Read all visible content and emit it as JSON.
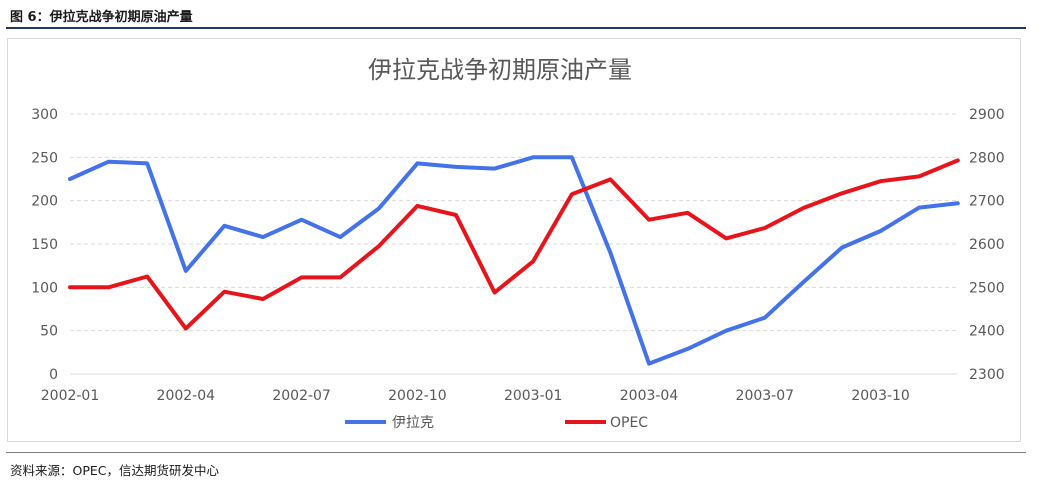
{
  "figure": {
    "caption": "图 6：伊拉克战争初期原油产量",
    "source": "资料来源：OPEC，信达期货研发中心"
  },
  "colors": {
    "iraq": "#4472e8",
    "opec": "#e8141b",
    "grid": "#d9d9d9",
    "text": "#595959"
  },
  "chart_data": {
    "type": "line",
    "title": "伊拉克战争初期原油产量",
    "x": [
      "2002-01",
      "2002-02",
      "2002-03",
      "2002-04",
      "2002-05",
      "2002-06",
      "2002-07",
      "2002-08",
      "2002-09",
      "2002-10",
      "2002-11",
      "2002-12",
      "2003-01",
      "2003-02",
      "2003-03",
      "2003-04",
      "2003-05",
      "2003-06",
      "2003-07",
      "2003-08",
      "2003-09",
      "2003-10",
      "2003-11",
      "2003-12"
    ],
    "x_tick_labels": [
      "2002-01",
      "2002-04",
      "2002-07",
      "2002-10",
      "2003-01",
      "2003-04",
      "2003-07",
      "2003-10"
    ],
    "x_tick_indices": [
      0,
      3,
      6,
      9,
      12,
      15,
      18,
      21
    ],
    "y_left": {
      "ylim": [
        0,
        300
      ],
      "ticks": [
        0,
        50,
        100,
        150,
        200,
        250,
        300
      ]
    },
    "y_right": {
      "ylim": [
        2300,
        2900
      ],
      "ticks": [
        2300,
        2400,
        2500,
        2600,
        2700,
        2800,
        2900
      ]
    },
    "grid": true,
    "legend_position": "bottom",
    "series": [
      {
        "name": "伊拉克",
        "axis": "left",
        "values": [
          225,
          245,
          243,
          119,
          171,
          158,
          178,
          158,
          191,
          243,
          239,
          237,
          250,
          250,
          140,
          12,
          29,
          50,
          65,
          106,
          146,
          165,
          192,
          197
        ]
      },
      {
        "name": "OPEC",
        "axis": "right",
        "values": [
          2500,
          2500,
          2525,
          2405,
          2490,
          2473,
          2523,
          2523,
          2595,
          2688,
          2667,
          2488,
          2560,
          2715,
          2749,
          2656,
          2672,
          2613,
          2637,
          2683,
          2717,
          2745,
          2756,
          2793
        ]
      }
    ]
  }
}
